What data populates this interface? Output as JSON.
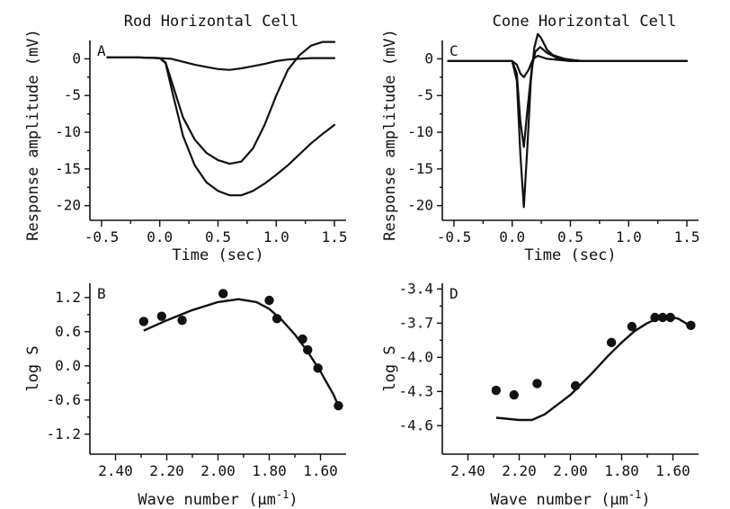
{
  "titles": {
    "left": "Rod Horizontal Cell",
    "right": "Cone Horizontal Cell"
  },
  "colors": {
    "ink": "#111111",
    "background": "#ffffff"
  },
  "chart_data": [
    {
      "id": "A",
      "type": "line",
      "letter": "A",
      "title": "Rod Horizontal Cell",
      "xlabel": "Time (sec)",
      "ylabel": "Response amplitude (mV)",
      "xlim": [
        -0.6,
        1.6
      ],
      "ylim": [
        -22,
        2.5
      ],
      "xticks": [
        -0.5,
        0.0,
        0.5,
        1.0,
        1.5
      ],
      "xtick_labels": [
        "-0.5",
        "0.0",
        "0.5",
        "1.0",
        "1.5"
      ],
      "yticks": [
        0,
        -5,
        -10,
        -15,
        -20
      ],
      "ytick_labels": [
        "0",
        "-5",
        "-10",
        "-15",
        "-20"
      ],
      "series": [
        {
          "x": [
            -0.45,
            -0.2,
            0.0,
            0.1,
            0.2,
            0.3,
            0.4,
            0.5,
            0.6,
            0.7,
            0.8,
            0.9,
            1.0,
            1.1,
            1.2,
            1.3,
            1.4,
            1.5
          ],
          "y": [
            0.2,
            0.2,
            0.1,
            0.0,
            -0.4,
            -0.8,
            -1.1,
            -1.4,
            -1.5,
            -1.3,
            -1.0,
            -0.7,
            -0.3,
            -0.1,
            0.0,
            0.1,
            0.1,
            0.1
          ]
        },
        {
          "x": [
            -0.45,
            -0.2,
            0.0,
            0.05,
            0.1,
            0.2,
            0.3,
            0.4,
            0.5,
            0.6,
            0.7,
            0.8,
            0.9,
            1.0,
            1.1,
            1.2,
            1.3,
            1.4,
            1.5
          ],
          "y": [
            0.2,
            0.2,
            0.1,
            -0.5,
            -3.0,
            -8.0,
            -11.0,
            -12.8,
            -13.8,
            -14.3,
            -14.0,
            -12.2,
            -9.0,
            -5.0,
            -1.5,
            0.5,
            1.8,
            2.3,
            2.3
          ]
        },
        {
          "x": [
            -0.45,
            -0.2,
            0.0,
            0.05,
            0.1,
            0.2,
            0.3,
            0.4,
            0.5,
            0.6,
            0.7,
            0.8,
            0.9,
            1.0,
            1.1,
            1.2,
            1.3,
            1.4,
            1.5
          ],
          "y": [
            0.2,
            0.2,
            0.1,
            -0.6,
            -4.0,
            -10.5,
            -14.5,
            -16.8,
            -18.0,
            -18.6,
            -18.6,
            -18.0,
            -17.0,
            -15.8,
            -14.5,
            -13.0,
            -11.5,
            -10.2,
            -9.0
          ]
        }
      ]
    },
    {
      "id": "C",
      "type": "line",
      "letter": "C",
      "title": "Cone Horizontal Cell",
      "xlabel": "Time (sec)",
      "ylabel": "Response amplitude (mV)",
      "xlim": [
        -0.6,
        1.6
      ],
      "ylim": [
        -22,
        2.5
      ],
      "xticks": [
        -0.5,
        0.0,
        0.5,
        1.0,
        1.5
      ],
      "xtick_labels": [
        "-0.5",
        "0.0",
        "0.5",
        "1.0",
        "1.5"
      ],
      "yticks": [
        0,
        -5,
        -10,
        -15,
        -20
      ],
      "ytick_labels": [
        "0",
        "-5",
        "-10",
        "-15",
        "-20"
      ],
      "series": [
        {
          "x": [
            -0.55,
            -0.2,
            0.0,
            0.04,
            0.07,
            0.1,
            0.14,
            0.18,
            0.22,
            0.3,
            0.5,
            1.0,
            1.5
          ],
          "y": [
            -0.3,
            -0.3,
            -0.3,
            -0.8,
            -2.0,
            -2.5,
            -1.5,
            0.0,
            0.4,
            0.0,
            -0.3,
            -0.3,
            -0.3
          ]
        },
        {
          "x": [
            -0.55,
            -0.2,
            0.0,
            0.04,
            0.07,
            0.1,
            0.13,
            0.17,
            0.2,
            0.24,
            0.3,
            0.4,
            0.5,
            1.0,
            1.5
          ],
          "y": [
            -0.3,
            -0.3,
            -0.3,
            -2.0,
            -8.5,
            -12.0,
            -7.0,
            -1.0,
            1.0,
            1.6,
            0.8,
            0.0,
            -0.3,
            -0.3,
            -0.3
          ]
        },
        {
          "x": [
            -0.55,
            -0.2,
            0.0,
            0.04,
            0.07,
            0.1,
            0.13,
            0.16,
            0.19,
            0.22,
            0.25,
            0.3,
            0.35,
            0.45,
            0.6,
            1.0,
            1.5
          ],
          "y": [
            -0.3,
            -0.3,
            -0.3,
            -3.0,
            -13.0,
            -20.2,
            -12.0,
            -3.0,
            1.5,
            3.4,
            2.8,
            1.2,
            0.5,
            0.0,
            -0.3,
            -0.3,
            -0.3
          ]
        }
      ]
    },
    {
      "id": "B",
      "type": "scatter",
      "letter": "B",
      "xlabel": "Wave number (μm",
      "xlabel_superscript": "-1",
      "xlabel_suffix": ")",
      "ylabel": "log S",
      "xlim": [
        2.5,
        1.5
      ],
      "ylim": [
        -1.55,
        1.45
      ],
      "xticks": [
        2.4,
        2.2,
        2.0,
        1.8,
        1.6
      ],
      "xtick_labels": [
        "2.40",
        "2.20",
        "2.00",
        "1.80",
        "1.60"
      ],
      "yticks": [
        1.2,
        0.6,
        0.0,
        -0.6,
        -1.2
      ],
      "ytick_labels": [
        "1.2",
        "0.6",
        "0.0",
        "-0.6",
        "-1.2"
      ],
      "points": {
        "x": [
          2.29,
          2.22,
          2.14,
          1.98,
          1.8,
          1.77,
          1.67,
          1.65,
          1.61,
          1.53
        ],
        "y": [
          0.78,
          0.87,
          0.8,
          1.27,
          1.15,
          0.83,
          0.47,
          0.28,
          -0.04,
          -0.7
        ]
      },
      "fit": {
        "x": [
          2.29,
          2.2,
          2.1,
          2.0,
          1.92,
          1.85,
          1.8,
          1.75,
          1.7,
          1.65,
          1.6,
          1.55,
          1.53
        ],
        "y": [
          0.62,
          0.8,
          0.98,
          1.12,
          1.17,
          1.12,
          1.0,
          0.8,
          0.55,
          0.25,
          -0.1,
          -0.5,
          -0.7
        ]
      }
    },
    {
      "id": "D",
      "type": "scatter",
      "letter": "D",
      "xlabel": "Wave number (μm",
      "xlabel_superscript": "-1",
      "xlabel_suffix": ")",
      "ylabel": "log S",
      "xlim": [
        2.5,
        1.5
      ],
      "ylim": [
        -4.85,
        -3.35
      ],
      "xticks": [
        2.4,
        2.2,
        2.0,
        1.8,
        1.6
      ],
      "xtick_labels": [
        "2.40",
        "2.20",
        "2.00",
        "1.80",
        "1.60"
      ],
      "yticks": [
        -3.4,
        -3.7,
        -4.0,
        -4.3,
        -4.6
      ],
      "ytick_labels": [
        "-3.4",
        "-3.7",
        "-4.0",
        "-4.3",
        "-4.6"
      ],
      "points": {
        "x": [
          2.29,
          2.22,
          2.13,
          1.98,
          1.84,
          1.76,
          1.67,
          1.64,
          1.61,
          1.53
        ],
        "y": [
          -4.29,
          -4.33,
          -4.23,
          -4.25,
          -3.87,
          -3.73,
          -3.65,
          -3.65,
          -3.65,
          -3.72
        ]
      },
      "fit": {
        "x": [
          2.29,
          2.2,
          2.15,
          2.1,
          2.0,
          1.92,
          1.85,
          1.8,
          1.75,
          1.7,
          1.66,
          1.62,
          1.58,
          1.55,
          1.53
        ],
        "y": [
          -4.53,
          -4.55,
          -4.55,
          -4.5,
          -4.33,
          -4.15,
          -3.98,
          -3.87,
          -3.77,
          -3.7,
          -3.66,
          -3.64,
          -3.66,
          -3.7,
          -3.74
        ]
      }
    }
  ]
}
